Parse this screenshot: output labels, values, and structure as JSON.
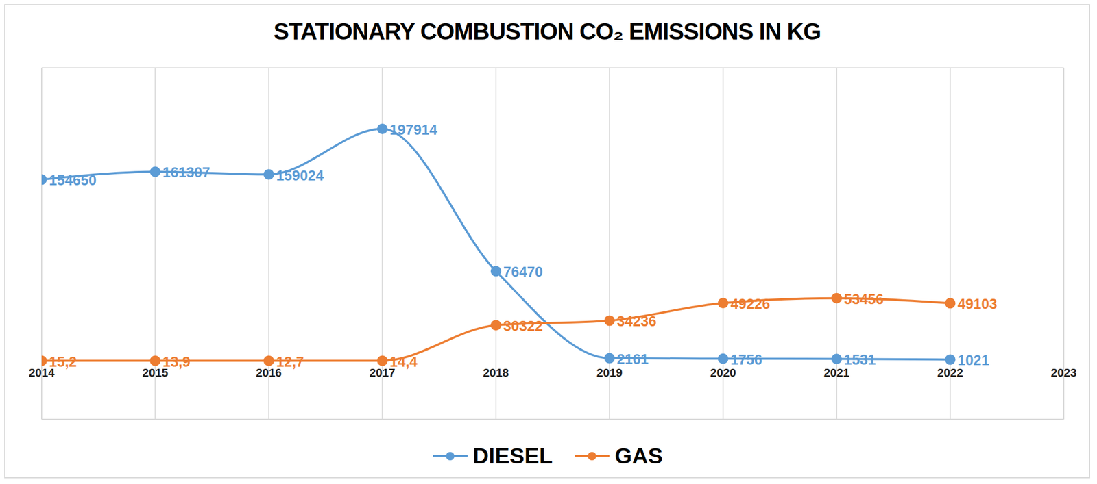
{
  "chart_data": {
    "type": "line",
    "title": "STATIONARY COMBUSTION CO₂ EMISSIONS IN KG",
    "x": [
      2014,
      2015,
      2016,
      2017,
      2018,
      2019,
      2020,
      2021,
      2022
    ],
    "series": [
      {
        "name": "DIESEL",
        "color": "#5b9bd5",
        "marker": "circle",
        "values": [
          154650,
          161307,
          159024,
          197914,
          76470,
          2161,
          1756,
          1531,
          1021
        ]
      },
      {
        "name": "GAS",
        "color": "#ed7d31",
        "marker": "circle",
        "values": [
          15.2,
          13.9,
          12.7,
          14.4,
          30322,
          34236,
          49226,
          53456,
          49103
        ],
        "value_labels": [
          "15,2",
          "13,9",
          "12,7",
          "14,4",
          "30322",
          "34236",
          "49226",
          "53456",
          "49103"
        ]
      }
    ],
    "xlim": [
      2014,
      2023
    ],
    "xticks": [
      2014,
      2015,
      2016,
      2017,
      2018,
      2019,
      2020,
      2021,
      2022,
      2023
    ],
    "ylim": [
      -50000,
      250000
    ],
    "yticks": [
      -50000,
      0,
      50000,
      100000,
      150000,
      200000,
      250000
    ],
    "grid": true,
    "legend": "bottom",
    "data_labels": true,
    "tick_labels": "x"
  }
}
